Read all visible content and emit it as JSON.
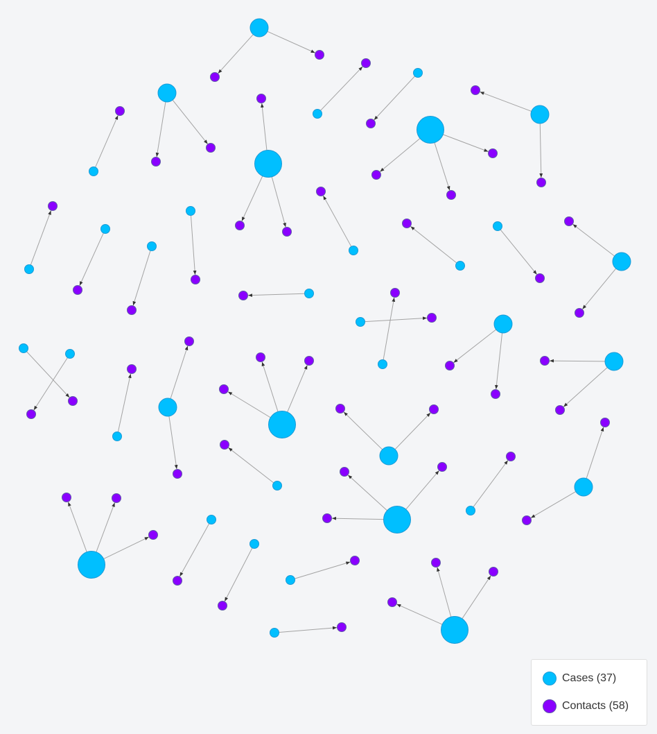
{
  "legend": {
    "cases_label": "Cases (37)",
    "contacts_label": "Contacts (58)",
    "case_color": "#00bfff",
    "contact_color": "#8a00ff"
  },
  "graph": {
    "cases": {
      "c1": 1,
      "c2": 1,
      "c3": 1,
      "c4": 1,
      "c5": 1,
      "c6": 1,
      "c7": 1,
      "c8": 1,
      "c9": 1,
      "c10": 1,
      "c11": 1,
      "c12": 1,
      "c13": 1,
      "c14": 1,
      "c15": 1,
      "c16": 1,
      "c17": 1,
      "c18": 1,
      "c19": 1,
      "c20": 1,
      "c21": 1,
      "c22": 1,
      "c23": 1,
      "c24": 1,
      "c25": 1,
      "c26": 1,
      "c27": 1,
      "c28": 1,
      "c29": 1,
      "c30": 1,
      "c31": 1,
      "c32": 1,
      "c33": 1,
      "c34": 1,
      "c35": 1,
      "c36": 1,
      "c37": 1
    },
    "edges": [
      [
        "c1",
        "k1"
      ],
      [
        "c1",
        "k2"
      ],
      [
        "c2",
        "k3"
      ],
      [
        "c2",
        "k4"
      ],
      [
        "c3",
        "k5"
      ],
      [
        "c3",
        "k6"
      ],
      [
        "c3",
        "k7"
      ],
      [
        "c4",
        "k8"
      ],
      [
        "c5",
        "k9"
      ],
      [
        "c6",
        "k10"
      ],
      [
        "c6",
        "k11"
      ],
      [
        "c6",
        "k12"
      ],
      [
        "c7",
        "k13"
      ],
      [
        "c7",
        "k14"
      ],
      [
        "c8",
        "k15"
      ],
      [
        "c9",
        "k16"
      ],
      [
        "c10",
        "k17"
      ],
      [
        "c11",
        "k18"
      ],
      [
        "c12",
        "k19"
      ],
      [
        "c13",
        "k20"
      ],
      [
        "c14",
        "k21"
      ],
      [
        "c15",
        "k22"
      ],
      [
        "c16",
        "k23"
      ],
      [
        "c17",
        "k24"
      ],
      [
        "c18",
        "k25"
      ],
      [
        "c18",
        "k26"
      ],
      [
        "c19",
        "k27"
      ],
      [
        "c20",
        "k28"
      ],
      [
        "c21",
        "k29"
      ],
      [
        "c22",
        "k30"
      ],
      [
        "c22",
        "k31"
      ],
      [
        "c23",
        "k32"
      ],
      [
        "c23",
        "k33"
      ],
      [
        "c24",
        "k34"
      ],
      [
        "c24",
        "k35"
      ],
      [
        "c24",
        "k36"
      ],
      [
        "c25",
        "k37"
      ],
      [
        "c26",
        "k38"
      ],
      [
        "c26",
        "k39"
      ],
      [
        "c27",
        "k40"
      ],
      [
        "c27",
        "k41"
      ],
      [
        "c27",
        "k42"
      ],
      [
        "c28",
        "k43"
      ],
      [
        "c29",
        "k44"
      ],
      [
        "c29",
        "k45"
      ],
      [
        "c30",
        "k46"
      ],
      [
        "c30",
        "k47"
      ],
      [
        "c30",
        "k48"
      ],
      [
        "c31",
        "k49"
      ],
      [
        "c32",
        "k50"
      ],
      [
        "c33",
        "k51"
      ],
      [
        "c34",
        "k52"
      ],
      [
        "c35",
        "k53"
      ],
      [
        "c35",
        "k54"
      ],
      [
        "c35",
        "k55"
      ],
      [
        "c36",
        "k56"
      ],
      [
        "c37",
        "k57"
      ],
      [
        "c37",
        "k58"
      ]
    ]
  }
}
